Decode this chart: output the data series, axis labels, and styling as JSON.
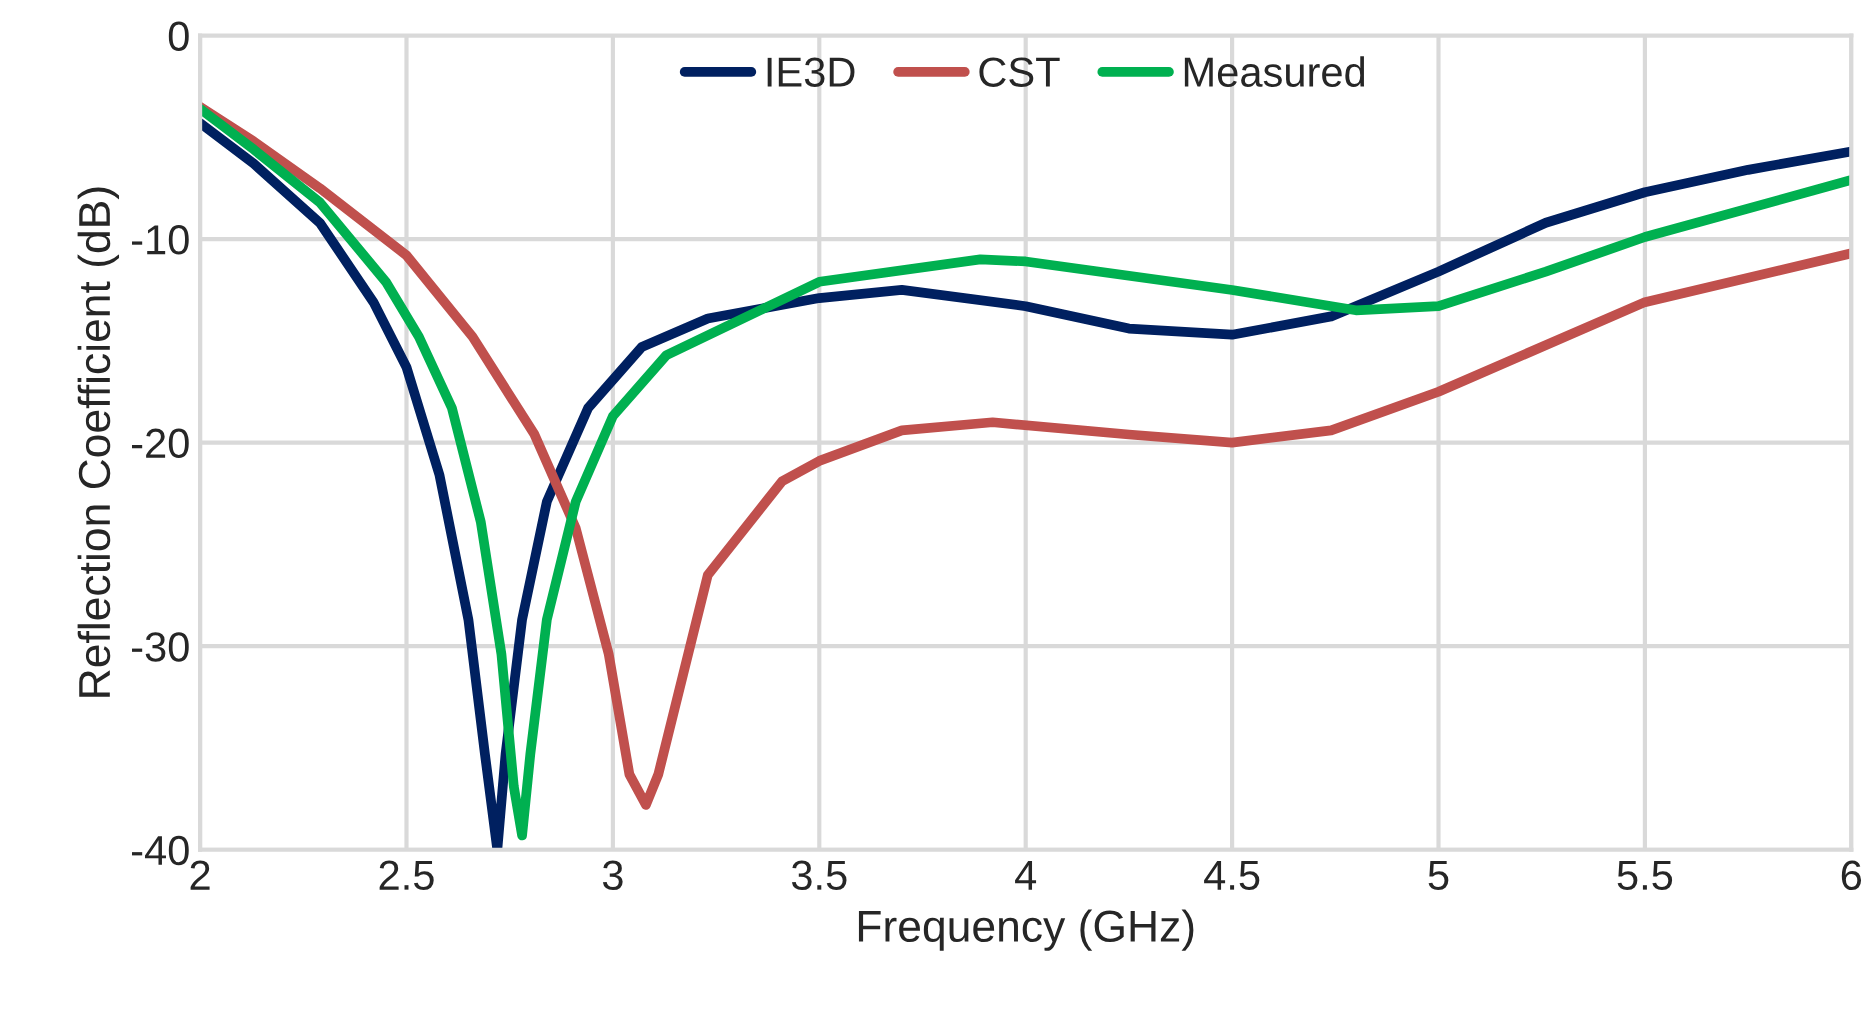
{
  "chart_data": {
    "type": "line",
    "xlabel": "Frequency (GHz)",
    "ylabel": "Reflection Coefficient (dB)",
    "xlim": [
      2,
      6
    ],
    "xticks": [
      2,
      2.5,
      3,
      3.5,
      4,
      4.5,
      5,
      5.5,
      6
    ],
    "ylim": [
      -40,
      0
    ],
    "yticks": [
      -40,
      -30,
      -20,
      -10,
      0
    ],
    "grid": true,
    "legend": "top",
    "line_style": "solid",
    "marker": "none",
    "series": [
      {
        "name": "IE3D",
        "color": "#002060",
        "x": [
          2,
          2.13,
          2.29,
          2.42,
          2.5,
          2.58,
          2.65,
          2.69,
          2.72,
          2.74,
          2.78,
          2.84,
          2.94,
          3.07,
          3.23,
          3.5,
          3.7,
          4,
          4.25,
          4.5,
          4.74,
          5,
          5.26,
          5.5,
          5.75,
          6
        ],
        "values": [
          -4.3,
          -6.3,
          -9.2,
          -13.1,
          -16.3,
          -21.6,
          -28.7,
          -35.3,
          -40,
          -35.3,
          -28.7,
          -22.9,
          -18.3,
          -15.3,
          -13.9,
          -12.9,
          -12.5,
          -13.3,
          -14.4,
          -14.7,
          -13.8,
          -11.6,
          -9.2,
          -7.7,
          -6.6,
          -5.7
        ]
      },
      {
        "name": "CST",
        "color": "#c0504d",
        "x": [
          2,
          2.13,
          2.29,
          2.5,
          2.66,
          2.81,
          2.91,
          2.99,
          3.04,
          3.08,
          3.11,
          3.17,
          3.23,
          3.41,
          3.5,
          3.7,
          3.92,
          4.25,
          4.5,
          4.74,
          5,
          5.5,
          6
        ],
        "values": [
          -3.5,
          -5.2,
          -7.5,
          -10.8,
          -14.8,
          -19.6,
          -24.2,
          -30.4,
          -36.3,
          -37.8,
          -36.3,
          -31.4,
          -26.5,
          -21.9,
          -20.9,
          -19.4,
          -19,
          -19.6,
          -20,
          -19.4,
          -17.5,
          -13.1,
          -10.7
        ]
      },
      {
        "name": "Measured",
        "color": "#00b050",
        "x": [
          2,
          2.13,
          2.29,
          2.45,
          2.53,
          2.61,
          2.68,
          2.73,
          2.76,
          2.78,
          2.8,
          2.84,
          2.91,
          3,
          3.13,
          3.5,
          3.89,
          4,
          4.5,
          4.8,
          5,
          5.26,
          5.5,
          6
        ],
        "values": [
          -3.6,
          -5.6,
          -8.2,
          -12.1,
          -14.8,
          -18.3,
          -23.9,
          -30.4,
          -36.9,
          -39.3,
          -35.3,
          -28.7,
          -22.9,
          -18.7,
          -15.7,
          -12.1,
          -11,
          -11.1,
          -12.5,
          -13.5,
          -13.3,
          -11.6,
          -9.9,
          -7.1
        ]
      }
    ]
  }
}
